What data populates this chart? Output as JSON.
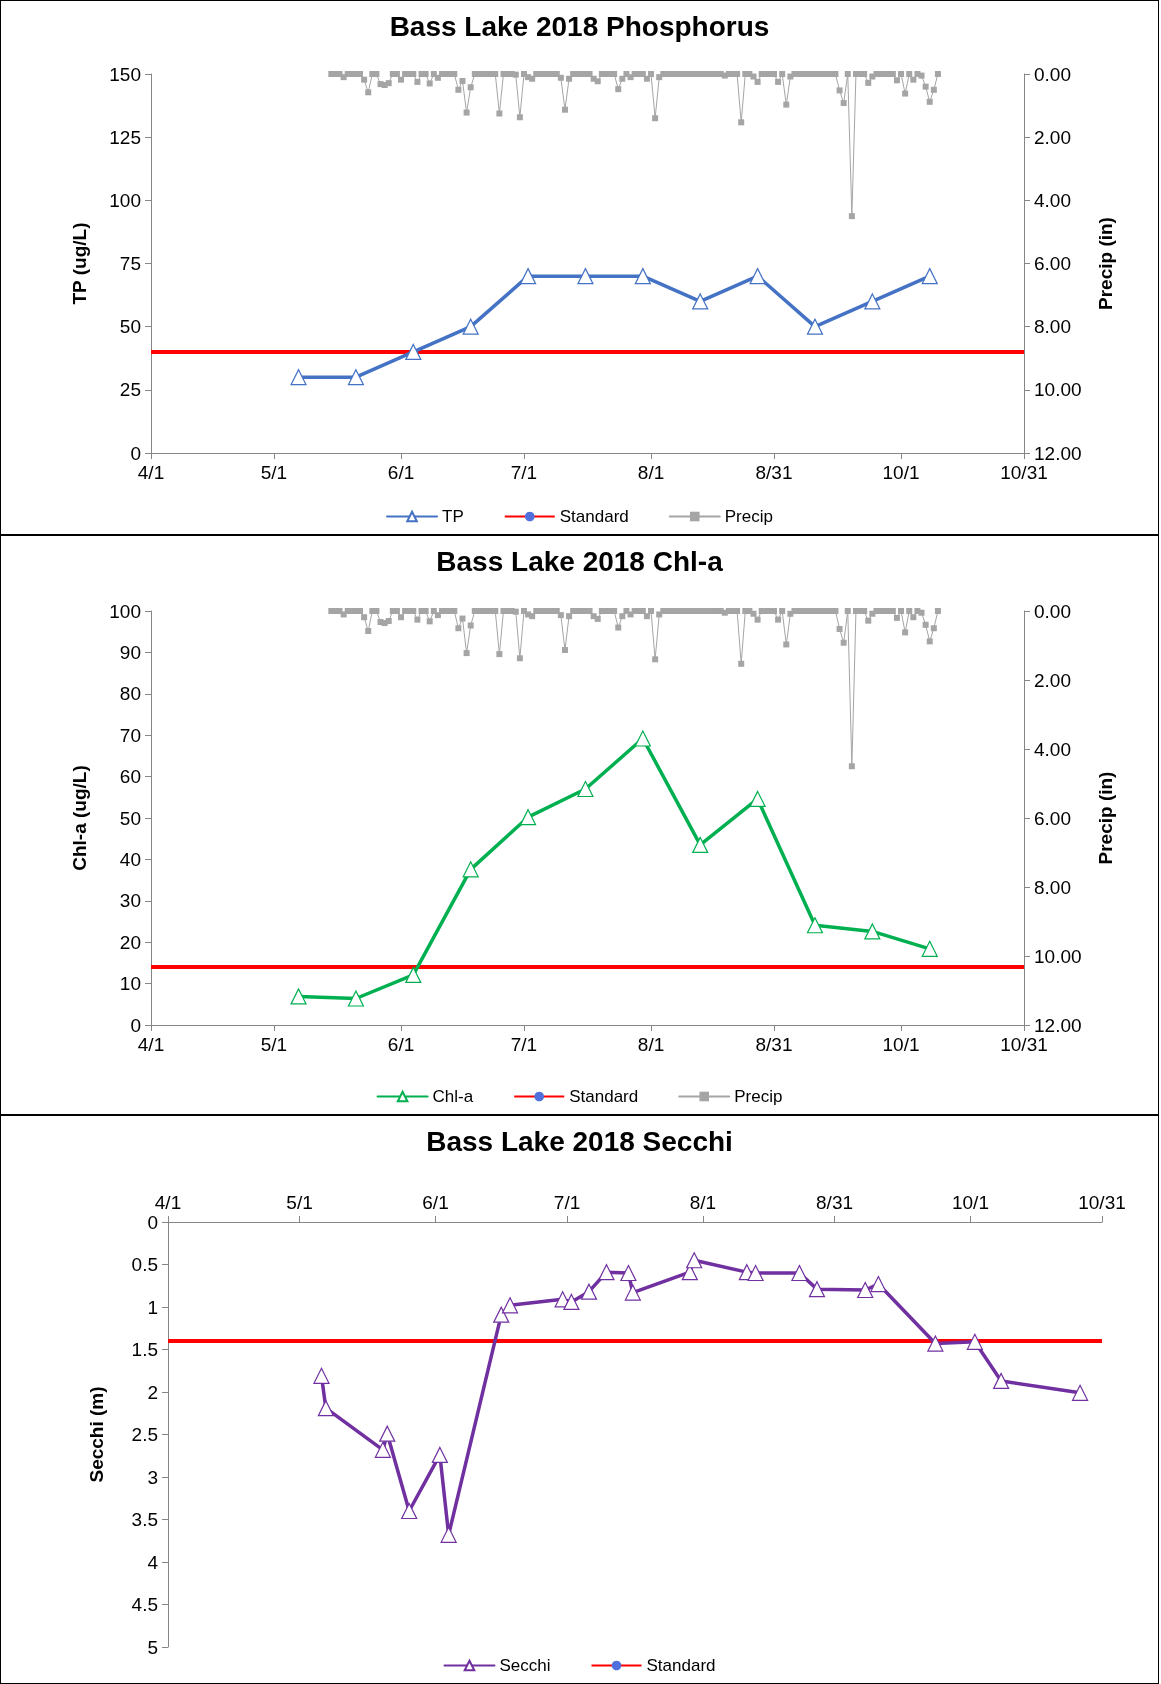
{
  "chart_data": [
    {
      "type": "line",
      "title": "Bass Lake 2018 Phosphorus",
      "ylabel": "TP (ug/L)",
      "y2label": "Precip (in)",
      "xlim": [
        "--04-01",
        "--10-31"
      ],
      "xticks": [
        {
          "value": "--04-01",
          "label": "4/1"
        },
        {
          "value": "--05-01",
          "label": "5/1"
        },
        {
          "value": "--06-01",
          "label": "6/1"
        },
        {
          "value": "--07-01",
          "label": "7/1"
        },
        {
          "value": "--08-01",
          "label": "8/1"
        },
        {
          "value": "--08-31",
          "label": "8/31"
        },
        {
          "value": "--10-01",
          "label": "10/1"
        },
        {
          "value": "--10-31",
          "label": "10/31"
        }
      ],
      "ylim": [
        0,
        150
      ],
      "yticks": [
        0,
        25,
        50,
        75,
        100,
        125,
        150
      ],
      "y2lim": [
        12,
        0
      ],
      "y2ticks": [
        {
          "value": 0,
          "label": "0.00"
        },
        {
          "value": 2,
          "label": "2.00"
        },
        {
          "value": 4,
          "label": "4.00"
        },
        {
          "value": 6,
          "label": "6.00"
        },
        {
          "value": 8,
          "label": "8.00"
        },
        {
          "value": 10,
          "label": "10.00"
        },
        {
          "value": 12,
          "label": "12.00"
        }
      ],
      "series": [
        {
          "name": "TP",
          "color": "#4472c4",
          "marker": "triangle",
          "x": [
            "--05-07",
            "--05-21",
            "--06-04",
            "--06-18",
            "--07-02",
            "--07-16",
            "--07-30",
            "--08-13",
            "--08-27",
            "--09-10",
            "--09-24",
            "--10-08"
          ],
          "values": [
            30,
            30,
            40,
            50,
            70,
            70,
            70,
            60,
            70,
            50,
            60,
            70
          ]
        },
        {
          "name": "Precip",
          "color": "#a5a5a5",
          "marker": "square",
          "axis": "y2",
          "x": [
            "--05-15",
            "--05-16",
            "--05-17",
            "--05-18",
            "--05-19",
            "--05-20",
            "--05-21",
            "--05-22",
            "--05-23",
            "--05-24",
            "--05-25",
            "--05-26",
            "--05-27",
            "--05-28",
            "--05-29",
            "--05-30",
            "--05-31",
            "--06-01",
            "--06-02",
            "--06-03",
            "--06-04",
            "--06-05",
            "--06-06",
            "--06-07",
            "--06-08",
            "--06-09",
            "--06-10",
            "--06-11",
            "--06-12",
            "--06-13",
            "--06-14",
            "--06-15",
            "--06-16",
            "--06-17",
            "--06-18",
            "--06-19",
            "--06-20",
            "--06-21",
            "--06-22",
            "--06-23",
            "--06-24",
            "--06-25",
            "--06-26",
            "--06-27",
            "--06-28",
            "--06-29",
            "--06-30",
            "--07-01",
            "--07-02",
            "--07-03",
            "--07-04",
            "--07-05",
            "--07-06",
            "--07-07",
            "--07-08",
            "--07-09",
            "--07-10",
            "--07-11",
            "--07-12",
            "--07-13",
            "--07-14",
            "--07-15",
            "--07-16",
            "--07-17",
            "--07-18",
            "--07-19",
            "--07-20",
            "--07-21",
            "--07-22",
            "--07-23",
            "--07-24",
            "--07-25",
            "--07-26",
            "--07-27",
            "--07-28",
            "--07-29",
            "--07-30",
            "--07-31",
            "--08-01",
            "--08-02",
            "--08-03",
            "--08-04",
            "--08-05",
            "--08-06",
            "--08-07",
            "--08-08",
            "--08-09",
            "--08-10",
            "--08-11",
            "--08-12",
            "--08-13",
            "--08-14",
            "--08-15",
            "--08-16",
            "--08-17",
            "--08-18",
            "--08-19",
            "--08-20",
            "--08-21",
            "--08-22",
            "--08-23",
            "--08-24",
            "--08-25",
            "--08-26",
            "--08-27",
            "--08-28",
            "--08-29",
            "--08-30",
            "--08-31",
            "--09-01",
            "--09-02",
            "--09-03",
            "--09-04",
            "--09-05",
            "--09-06",
            "--09-07",
            "--09-08",
            "--09-09",
            "--09-10",
            "--09-11",
            "--09-12",
            "--09-13",
            "--09-14",
            "--09-15",
            "--09-16",
            "--09-17",
            "--09-18",
            "--09-19",
            "--09-20",
            "--09-21",
            "--09-22",
            "--09-23",
            "--09-24",
            "--09-25",
            "--09-26",
            "--09-27",
            "--09-28",
            "--09-29",
            "--09-30",
            "--10-01",
            "--10-02",
            "--10-03",
            "--10-04",
            "--10-05",
            "--10-06",
            "--10-07",
            "--10-08",
            "--10-09",
            "--10-10"
          ],
          "values": [
            0,
            0,
            0,
            0.1,
            0,
            0,
            0,
            0,
            0.18,
            0.58,
            0,
            0,
            0.32,
            0.35,
            0.29,
            0,
            0,
            0.18,
            0,
            0,
            0,
            0.25,
            0,
            0,
            0.3,
            0,
            0.12,
            0,
            0,
            0,
            0,
            0.5,
            0.22,
            1.22,
            0.42,
            0,
            0,
            0,
            0,
            0,
            0,
            1.25,
            0,
            0,
            0,
            0.02,
            1.37,
            0,
            0.1,
            0.15,
            0,
            0,
            0,
            0,
            0,
            0,
            0.12,
            1.13,
            0.15,
            0,
            0,
            0,
            0,
            0,
            0.15,
            0.23,
            0,
            0,
            0,
            0,
            0.48,
            0.15,
            0,
            0.1,
            0,
            0,
            0,
            0.15,
            0,
            1.4,
            0.1,
            0,
            0,
            0,
            0,
            0,
            0,
            0,
            0,
            0,
            0,
            0,
            0,
            0,
            0,
            0,
            0.05,
            0,
            0,
            0,
            1.53,
            0,
            0,
            0.08,
            0.25,
            0,
            0,
            0,
            0,
            0.25,
            0,
            0.97,
            0.08,
            0,
            0,
            0,
            0,
            0,
            0,
            0,
            0,
            0,
            0,
            0,
            0.52,
            0.92,
            0,
            4.5,
            0,
            0,
            0,
            0.28,
            0.08,
            0,
            0,
            0,
            0,
            0,
            0.2,
            0,
            0.62,
            0,
            0.18,
            0,
            0.05,
            0.4,
            0.88,
            0.5,
            0
          ]
        }
      ],
      "ref_lines": [
        {
          "axis": "y",
          "value": 40,
          "label": "Standard",
          "color": "#ff0000"
        }
      ],
      "legend": "bottom",
      "grid": false
    },
    {
      "type": "line",
      "title": "Bass Lake 2018 Chl-a",
      "ylabel": "Chl-a (ug/L)",
      "y2label": "Precip (in)",
      "xlim": [
        "--04-01",
        "--10-31"
      ],
      "xticks": [
        {
          "value": "--04-01",
          "label": "4/1"
        },
        {
          "value": "--05-01",
          "label": "5/1"
        },
        {
          "value": "--06-01",
          "label": "6/1"
        },
        {
          "value": "--07-01",
          "label": "7/1"
        },
        {
          "value": "--08-01",
          "label": "8/1"
        },
        {
          "value": "--08-31",
          "label": "8/31"
        },
        {
          "value": "--10-01",
          "label": "10/1"
        },
        {
          "value": "--10-31",
          "label": "10/31"
        }
      ],
      "ylim": [
        0,
        100
      ],
      "yticks": [
        0,
        10,
        20,
        30,
        40,
        50,
        60,
        70,
        80,
        90,
        100
      ],
      "y2lim": [
        12,
        0
      ],
      "y2ticks": [
        {
          "value": 0,
          "label": "0.00"
        },
        {
          "value": 2,
          "label": "2.00"
        },
        {
          "value": 4,
          "label": "4.00"
        },
        {
          "value": 6,
          "label": "6.00"
        },
        {
          "value": 8,
          "label": "8.00"
        },
        {
          "value": 10,
          "label": "10.00"
        },
        {
          "value": 12,
          "label": "12.00"
        }
      ],
      "series": [
        {
          "name": "Chl-a",
          "color": "#00b050",
          "marker": "triangle",
          "x": [
            "--05-07",
            "--05-21",
            "--06-04",
            "--06-18",
            "--07-02",
            "--07-16",
            "--07-30",
            "--08-13",
            "--08-27",
            "--09-10",
            "--09-24",
            "--10-08"
          ],
          "values": [
            6.9,
            6.4,
            12.1,
            37.6,
            50.2,
            57,
            69.2,
            43.5,
            54.6,
            24.1,
            22.6,
            18.4
          ]
        },
        {
          "name": "Precip",
          "color": "#a5a5a5",
          "marker": "square",
          "axis": "y2",
          "x": [
            "--05-15",
            "--05-16",
            "--05-17",
            "--05-18",
            "--05-19",
            "--05-20",
            "--05-21",
            "--05-22",
            "--05-23",
            "--05-24",
            "--05-25",
            "--05-26",
            "--05-27",
            "--05-28",
            "--05-29",
            "--05-30",
            "--05-31",
            "--06-01",
            "--06-02",
            "--06-03",
            "--06-04",
            "--06-05",
            "--06-06",
            "--06-07",
            "--06-08",
            "--06-09",
            "--06-10",
            "--06-11",
            "--06-12",
            "--06-13",
            "--06-14",
            "--06-15",
            "--06-16",
            "--06-17",
            "--06-18",
            "--06-19",
            "--06-20",
            "--06-21",
            "--06-22",
            "--06-23",
            "--06-24",
            "--06-25",
            "--06-26",
            "--06-27",
            "--06-28",
            "--06-29",
            "--06-30",
            "--07-01",
            "--07-02",
            "--07-03",
            "--07-04",
            "--07-05",
            "--07-06",
            "--07-07",
            "--07-08",
            "--07-09",
            "--07-10",
            "--07-11",
            "--07-12",
            "--07-13",
            "--07-14",
            "--07-15",
            "--07-16",
            "--07-17",
            "--07-18",
            "--07-19",
            "--07-20",
            "--07-21",
            "--07-22",
            "--07-23",
            "--07-24",
            "--07-25",
            "--07-26",
            "--07-27",
            "--07-28",
            "--07-29",
            "--07-30",
            "--07-31",
            "--08-01",
            "--08-02",
            "--08-03",
            "--08-04",
            "--08-05",
            "--08-06",
            "--08-07",
            "--08-08",
            "--08-09",
            "--08-10",
            "--08-11",
            "--08-12",
            "--08-13",
            "--08-14",
            "--08-15",
            "--08-16",
            "--08-17",
            "--08-18",
            "--08-19",
            "--08-20",
            "--08-21",
            "--08-22",
            "--08-23",
            "--08-24",
            "--08-25",
            "--08-26",
            "--08-27",
            "--08-28",
            "--08-29",
            "--08-30",
            "--08-31",
            "--09-01",
            "--09-02",
            "--09-03",
            "--09-04",
            "--09-05",
            "--09-06",
            "--09-07",
            "--09-08",
            "--09-09",
            "--09-10",
            "--09-11",
            "--09-12",
            "--09-13",
            "--09-14",
            "--09-15",
            "--09-16",
            "--09-17",
            "--09-18",
            "--09-19",
            "--09-20",
            "--09-21",
            "--09-22",
            "--09-23",
            "--09-24",
            "--09-25",
            "--09-26",
            "--09-27",
            "--09-28",
            "--09-29",
            "--09-30",
            "--10-01",
            "--10-02",
            "--10-03",
            "--10-04",
            "--10-05",
            "--10-06",
            "--10-07",
            "--10-08",
            "--10-09",
            "--10-10"
          ],
          "values": [
            0,
            0,
            0,
            0.1,
            0,
            0,
            0,
            0,
            0.18,
            0.58,
            0,
            0,
            0.32,
            0.35,
            0.29,
            0,
            0,
            0.18,
            0,
            0,
            0,
            0.25,
            0,
            0,
            0.3,
            0,
            0.12,
            0,
            0,
            0,
            0,
            0.5,
            0.22,
            1.22,
            0.42,
            0,
            0,
            0,
            0,
            0,
            0,
            1.25,
            0,
            0,
            0,
            0.02,
            1.37,
            0,
            0.1,
            0.15,
            0,
            0,
            0,
            0,
            0,
            0,
            0.12,
            1.13,
            0.15,
            0,
            0,
            0,
            0,
            0,
            0.15,
            0.23,
            0,
            0,
            0,
            0,
            0.48,
            0.15,
            0,
            0.1,
            0,
            0,
            0,
            0.15,
            0,
            1.4,
            0.1,
            0,
            0,
            0,
            0,
            0,
            0,
            0,
            0,
            0,
            0,
            0,
            0,
            0,
            0,
            0,
            0.05,
            0,
            0,
            0,
            1.53,
            0,
            0,
            0.08,
            0.25,
            0,
            0,
            0,
            0,
            0.25,
            0,
            0.97,
            0.08,
            0,
            0,
            0,
            0,
            0,
            0,
            0,
            0,
            0,
            0,
            0,
            0.52,
            0.92,
            0,
            4.5,
            0,
            0,
            0,
            0.28,
            0.08,
            0,
            0,
            0,
            0,
            0,
            0.2,
            0,
            0.62,
            0,
            0.18,
            0,
            0.05,
            0.4,
            0.88,
            0.5,
            0
          ]
        }
      ],
      "ref_lines": [
        {
          "axis": "y",
          "value": 14,
          "label": "Standard",
          "color": "#ff0000"
        }
      ],
      "legend": "bottom",
      "grid": false
    },
    {
      "type": "line",
      "title": "Bass Lake 2018 Secchi",
      "ylabel": "Secchi (m)",
      "xlim": [
        "--04-01",
        "--10-31"
      ],
      "xticks": [
        {
          "value": "--04-01",
          "label": "4/1"
        },
        {
          "value": "--05-01",
          "label": "5/1"
        },
        {
          "value": "--06-01",
          "label": "6/1"
        },
        {
          "value": "--07-01",
          "label": "7/1"
        },
        {
          "value": "--08-01",
          "label": "8/1"
        },
        {
          "value": "--08-31",
          "label": "8/31"
        },
        {
          "value": "--10-01",
          "label": "10/1"
        },
        {
          "value": "--10-31",
          "label": "10/31"
        }
      ],
      "ylim": [
        5,
        0
      ],
      "yticks": [
        0,
        0.5,
        1,
        1.5,
        2,
        2.5,
        3,
        3.5,
        4,
        4.5,
        5
      ],
      "series": [
        {
          "name": "Secchi",
          "color": "#7030a0",
          "marker": "triangle",
          "x": [
            "--05-06",
            "--05-07",
            "--05-20",
            "--05-21",
            "--05-26",
            "--06-02",
            "--06-04",
            "--06-16",
            "--06-18",
            "--06-30",
            "--07-02",
            "--07-06",
            "--07-10",
            "--07-15",
            "--07-16",
            "--07-29",
            "--07-30",
            "--08-11",
            "--08-13",
            "--08-23",
            "--08-27",
            "--09-07",
            "--09-10",
            "--09-23",
            "--10-02",
            "--10-08",
            "--10-26"
          ],
          "values": [
            1.81,
            2.19,
            2.68,
            2.49,
            3.4,
            2.74,
            3.68,
            1.09,
            0.98,
            0.91,
            0.94,
            0.82,
            0.59,
            0.6,
            0.83,
            0.59,
            0.45,
            0.59,
            0.6,
            0.6,
            0.79,
            0.8,
            0.73,
            1.43,
            1.41,
            1.87,
            2.01
          ]
        }
      ],
      "ref_lines": [
        {
          "axis": "y",
          "value": 1.4,
          "label": "Standard",
          "color": "#ff0000"
        }
      ],
      "legend": "bottom",
      "grid": false
    }
  ]
}
